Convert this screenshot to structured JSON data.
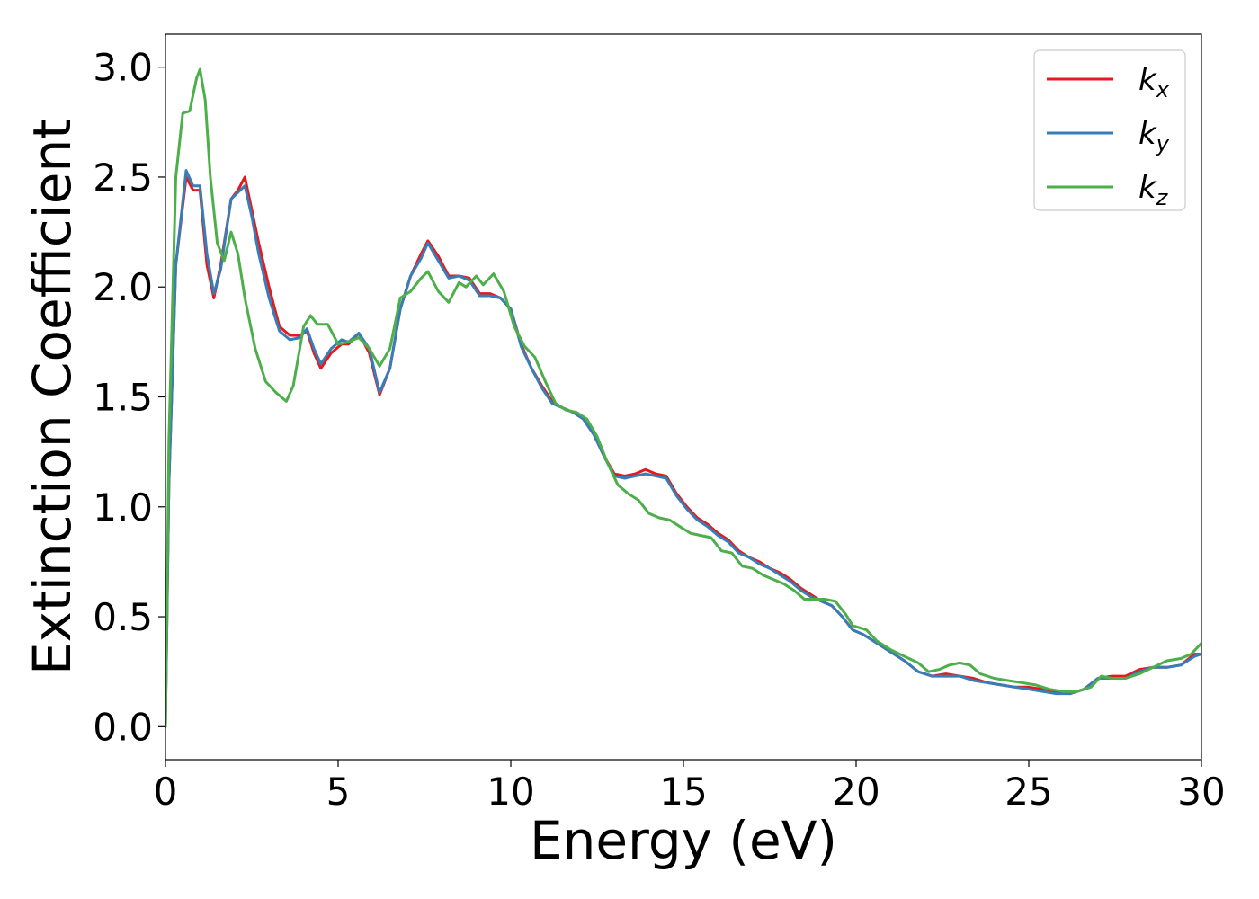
{
  "chart_data": {
    "type": "line",
    "xlabel": "Energy (eV)",
    "ylabel": "Extinction Coefficient",
    "xlim": [
      0,
      30
    ],
    "ylim": [
      -0.15,
      3.15
    ],
    "xticks": [
      0,
      5,
      10,
      15,
      20,
      25,
      30
    ],
    "yticks": [
      0.0,
      0.5,
      1.0,
      1.5,
      2.0,
      2.5,
      3.0
    ],
    "xtick_labels": [
      "0",
      "5",
      "10",
      "15",
      "20",
      "25",
      "30"
    ],
    "ytick_labels": [
      "0.0",
      "0.5",
      "1.0",
      "1.5",
      "2.0",
      "2.5",
      "3.0"
    ],
    "grid": false,
    "legend_position": "top-right",
    "series": [
      {
        "name": "k_x",
        "base": "k",
        "sub": "x",
        "color": "#e41a1c",
        "points": [
          [
            0,
            0
          ],
          [
            0.1,
            1.1
          ],
          [
            0.3,
            2.1
          ],
          [
            0.6,
            2.5
          ],
          [
            0.8,
            2.44
          ],
          [
            1.0,
            2.44
          ],
          [
            1.2,
            2.1
          ],
          [
            1.4,
            1.95
          ],
          [
            1.6,
            2.1
          ],
          [
            1.9,
            2.4
          ],
          [
            2.1,
            2.44
          ],
          [
            2.3,
            2.5
          ],
          [
            2.5,
            2.35
          ],
          [
            2.7,
            2.2
          ],
          [
            3.0,
            2.0
          ],
          [
            3.3,
            1.82
          ],
          [
            3.6,
            1.78
          ],
          [
            3.9,
            1.78
          ],
          [
            4.1,
            1.8
          ],
          [
            4.3,
            1.7
          ],
          [
            4.5,
            1.63
          ],
          [
            4.8,
            1.7
          ],
          [
            5.1,
            1.74
          ],
          [
            5.3,
            1.74
          ],
          [
            5.6,
            1.79
          ],
          [
            5.9,
            1.7
          ],
          [
            6.2,
            1.51
          ],
          [
            6.5,
            1.63
          ],
          [
            6.8,
            1.9
          ],
          [
            7.1,
            2.05
          ],
          [
            7.4,
            2.15
          ],
          [
            7.6,
            2.21
          ],
          [
            7.9,
            2.14
          ],
          [
            8.2,
            2.05
          ],
          [
            8.5,
            2.05
          ],
          [
            8.8,
            2.04
          ],
          [
            9.1,
            1.97
          ],
          [
            9.4,
            1.97
          ],
          [
            9.7,
            1.95
          ],
          [
            10.0,
            1.9
          ],
          [
            10.3,
            1.74
          ],
          [
            10.6,
            1.63
          ],
          [
            10.9,
            1.55
          ],
          [
            11.2,
            1.48
          ],
          [
            11.5,
            1.45
          ],
          [
            11.8,
            1.43
          ],
          [
            12.1,
            1.4
          ],
          [
            12.4,
            1.33
          ],
          [
            12.7,
            1.23
          ],
          [
            13.0,
            1.15
          ],
          [
            13.3,
            1.14
          ],
          [
            13.6,
            1.15
          ],
          [
            13.9,
            1.17
          ],
          [
            14.2,
            1.15
          ],
          [
            14.5,
            1.14
          ],
          [
            14.8,
            1.06
          ],
          [
            15.1,
            1.0
          ],
          [
            15.4,
            0.95
          ],
          [
            15.7,
            0.92
          ],
          [
            16.0,
            0.88
          ],
          [
            16.3,
            0.85
          ],
          [
            16.6,
            0.8
          ],
          [
            16.9,
            0.77
          ],
          [
            17.2,
            0.75
          ],
          [
            17.5,
            0.72
          ],
          [
            17.8,
            0.7
          ],
          [
            18.1,
            0.67
          ],
          [
            18.4,
            0.63
          ],
          [
            18.7,
            0.6
          ],
          [
            19.0,
            0.57
          ],
          [
            19.3,
            0.55
          ],
          [
            19.6,
            0.5
          ],
          [
            19.9,
            0.44
          ],
          [
            20.2,
            0.42
          ],
          [
            20.6,
            0.38
          ],
          [
            21.0,
            0.34
          ],
          [
            21.4,
            0.3
          ],
          [
            21.8,
            0.25
          ],
          [
            22.2,
            0.23
          ],
          [
            22.6,
            0.24
          ],
          [
            23.0,
            0.23
          ],
          [
            23.4,
            0.22
          ],
          [
            23.8,
            0.2
          ],
          [
            24.2,
            0.19
          ],
          [
            24.6,
            0.18
          ],
          [
            25.0,
            0.18
          ],
          [
            25.4,
            0.17
          ],
          [
            25.8,
            0.16
          ],
          [
            26.2,
            0.15
          ],
          [
            26.6,
            0.17
          ],
          [
            27.0,
            0.22
          ],
          [
            27.4,
            0.23
          ],
          [
            27.8,
            0.23
          ],
          [
            28.2,
            0.26
          ],
          [
            28.6,
            0.27
          ],
          [
            29.0,
            0.27
          ],
          [
            29.4,
            0.28
          ],
          [
            29.8,
            0.33
          ],
          [
            30.0,
            0.33
          ]
        ]
      },
      {
        "name": "k_y",
        "base": "k",
        "sub": "y",
        "color": "#377eb8",
        "points": [
          [
            0,
            0
          ],
          [
            0.1,
            1.1
          ],
          [
            0.3,
            2.1
          ],
          [
            0.6,
            2.53
          ],
          [
            0.8,
            2.46
          ],
          [
            1.0,
            2.46
          ],
          [
            1.2,
            2.15
          ],
          [
            1.4,
            1.97
          ],
          [
            1.6,
            2.08
          ],
          [
            1.9,
            2.4
          ],
          [
            2.1,
            2.43
          ],
          [
            2.3,
            2.46
          ],
          [
            2.5,
            2.32
          ],
          [
            2.7,
            2.15
          ],
          [
            3.0,
            1.95
          ],
          [
            3.3,
            1.8
          ],
          [
            3.6,
            1.76
          ],
          [
            3.9,
            1.77
          ],
          [
            4.1,
            1.81
          ],
          [
            4.3,
            1.72
          ],
          [
            4.5,
            1.65
          ],
          [
            4.8,
            1.72
          ],
          [
            5.1,
            1.76
          ],
          [
            5.3,
            1.75
          ],
          [
            5.6,
            1.79
          ],
          [
            5.9,
            1.72
          ],
          [
            6.2,
            1.52
          ],
          [
            6.5,
            1.63
          ],
          [
            6.8,
            1.9
          ],
          [
            7.1,
            2.05
          ],
          [
            7.4,
            2.13
          ],
          [
            7.6,
            2.2
          ],
          [
            7.9,
            2.12
          ],
          [
            8.2,
            2.04
          ],
          [
            8.5,
            2.05
          ],
          [
            8.8,
            2.03
          ],
          [
            9.1,
            1.96
          ],
          [
            9.4,
            1.96
          ],
          [
            9.7,
            1.95
          ],
          [
            10.0,
            1.9
          ],
          [
            10.3,
            1.73
          ],
          [
            10.6,
            1.63
          ],
          [
            10.9,
            1.54
          ],
          [
            11.2,
            1.47
          ],
          [
            11.5,
            1.45
          ],
          [
            11.8,
            1.43
          ],
          [
            12.1,
            1.4
          ],
          [
            12.4,
            1.33
          ],
          [
            12.7,
            1.23
          ],
          [
            13.0,
            1.14
          ],
          [
            13.3,
            1.13
          ],
          [
            13.6,
            1.14
          ],
          [
            13.9,
            1.15
          ],
          [
            14.2,
            1.14
          ],
          [
            14.5,
            1.13
          ],
          [
            14.8,
            1.05
          ],
          [
            15.1,
            0.99
          ],
          [
            15.4,
            0.94
          ],
          [
            15.7,
            0.91
          ],
          [
            16.0,
            0.87
          ],
          [
            16.3,
            0.84
          ],
          [
            16.6,
            0.79
          ],
          [
            16.9,
            0.77
          ],
          [
            17.2,
            0.74
          ],
          [
            17.5,
            0.72
          ],
          [
            17.8,
            0.69
          ],
          [
            18.1,
            0.66
          ],
          [
            18.4,
            0.62
          ],
          [
            18.7,
            0.59
          ],
          [
            19.0,
            0.57
          ],
          [
            19.3,
            0.55
          ],
          [
            19.6,
            0.5
          ],
          [
            19.9,
            0.44
          ],
          [
            20.2,
            0.42
          ],
          [
            20.6,
            0.38
          ],
          [
            21.0,
            0.34
          ],
          [
            21.4,
            0.3
          ],
          [
            21.8,
            0.25
          ],
          [
            22.2,
            0.23
          ],
          [
            22.6,
            0.23
          ],
          [
            23.0,
            0.23
          ],
          [
            23.4,
            0.21
          ],
          [
            23.8,
            0.2
          ],
          [
            24.2,
            0.19
          ],
          [
            24.6,
            0.18
          ],
          [
            25.0,
            0.17
          ],
          [
            25.4,
            0.16
          ],
          [
            25.8,
            0.15
          ],
          [
            26.2,
            0.15
          ],
          [
            26.6,
            0.17
          ],
          [
            27.0,
            0.22
          ],
          [
            27.4,
            0.22
          ],
          [
            27.8,
            0.22
          ],
          [
            28.2,
            0.25
          ],
          [
            28.6,
            0.27
          ],
          [
            29.0,
            0.27
          ],
          [
            29.4,
            0.28
          ],
          [
            29.8,
            0.32
          ],
          [
            30.0,
            0.33
          ]
        ]
      },
      {
        "name": "k_z",
        "base": "k",
        "sub": "z",
        "color": "#4daf4a",
        "points": [
          [
            0,
            0
          ],
          [
            0.1,
            1.3
          ],
          [
            0.3,
            2.5
          ],
          [
            0.5,
            2.79
          ],
          [
            0.7,
            2.8
          ],
          [
            0.9,
            2.95
          ],
          [
            1.0,
            2.99
          ],
          [
            1.15,
            2.85
          ],
          [
            1.3,
            2.5
          ],
          [
            1.5,
            2.2
          ],
          [
            1.7,
            2.12
          ],
          [
            1.9,
            2.25
          ],
          [
            2.1,
            2.15
          ],
          [
            2.3,
            1.95
          ],
          [
            2.6,
            1.72
          ],
          [
            2.9,
            1.57
          ],
          [
            3.2,
            1.52
          ],
          [
            3.5,
            1.48
          ],
          [
            3.7,
            1.55
          ],
          [
            4.0,
            1.82
          ],
          [
            4.2,
            1.87
          ],
          [
            4.4,
            1.83
          ],
          [
            4.7,
            1.83
          ],
          [
            5.0,
            1.74
          ],
          [
            5.3,
            1.75
          ],
          [
            5.6,
            1.77
          ],
          [
            5.9,
            1.72
          ],
          [
            6.2,
            1.64
          ],
          [
            6.5,
            1.72
          ],
          [
            6.8,
            1.95
          ],
          [
            7.1,
            1.98
          ],
          [
            7.4,
            2.04
          ],
          [
            7.6,
            2.07
          ],
          [
            7.9,
            1.98
          ],
          [
            8.2,
            1.93
          ],
          [
            8.5,
            2.02
          ],
          [
            8.7,
            2.0
          ],
          [
            9.0,
            2.05
          ],
          [
            9.2,
            2.01
          ],
          [
            9.5,
            2.06
          ],
          [
            9.8,
            1.98
          ],
          [
            10.1,
            1.82
          ],
          [
            10.4,
            1.73
          ],
          [
            10.7,
            1.68
          ],
          [
            11.0,
            1.57
          ],
          [
            11.3,
            1.47
          ],
          [
            11.6,
            1.44
          ],
          [
            11.9,
            1.43
          ],
          [
            12.2,
            1.4
          ],
          [
            12.5,
            1.32
          ],
          [
            12.8,
            1.2
          ],
          [
            13.1,
            1.1
          ],
          [
            13.4,
            1.06
          ],
          [
            13.7,
            1.03
          ],
          [
            14.0,
            0.97
          ],
          [
            14.3,
            0.95
          ],
          [
            14.6,
            0.94
          ],
          [
            14.9,
            0.91
          ],
          [
            15.2,
            0.88
          ],
          [
            15.5,
            0.87
          ],
          [
            15.8,
            0.86
          ],
          [
            16.1,
            0.8
          ],
          [
            16.4,
            0.79
          ],
          [
            16.7,
            0.73
          ],
          [
            17.0,
            0.72
          ],
          [
            17.3,
            0.69
          ],
          [
            17.6,
            0.67
          ],
          [
            17.9,
            0.65
          ],
          [
            18.2,
            0.62
          ],
          [
            18.5,
            0.58
          ],
          [
            18.8,
            0.58
          ],
          [
            19.1,
            0.58
          ],
          [
            19.4,
            0.57
          ],
          [
            19.7,
            0.51
          ],
          [
            19.9,
            0.46
          ],
          [
            20.3,
            0.44
          ],
          [
            20.6,
            0.39
          ],
          [
            21.0,
            0.35
          ],
          [
            21.4,
            0.32
          ],
          [
            21.8,
            0.29
          ],
          [
            22.1,
            0.25
          ],
          [
            22.4,
            0.26
          ],
          [
            22.7,
            0.28
          ],
          [
            23.0,
            0.29
          ],
          [
            23.3,
            0.28
          ],
          [
            23.6,
            0.24
          ],
          [
            24.0,
            0.22
          ],
          [
            24.4,
            0.21
          ],
          [
            24.8,
            0.2
          ],
          [
            25.2,
            0.19
          ],
          [
            25.6,
            0.17
          ],
          [
            26.0,
            0.16
          ],
          [
            26.4,
            0.16
          ],
          [
            26.8,
            0.18
          ],
          [
            27.1,
            0.23
          ],
          [
            27.4,
            0.22
          ],
          [
            27.8,
            0.22
          ],
          [
            28.2,
            0.24
          ],
          [
            28.6,
            0.27
          ],
          [
            29.0,
            0.3
          ],
          [
            29.4,
            0.31
          ],
          [
            29.7,
            0.33
          ],
          [
            30.0,
            0.38
          ]
        ]
      }
    ]
  }
}
